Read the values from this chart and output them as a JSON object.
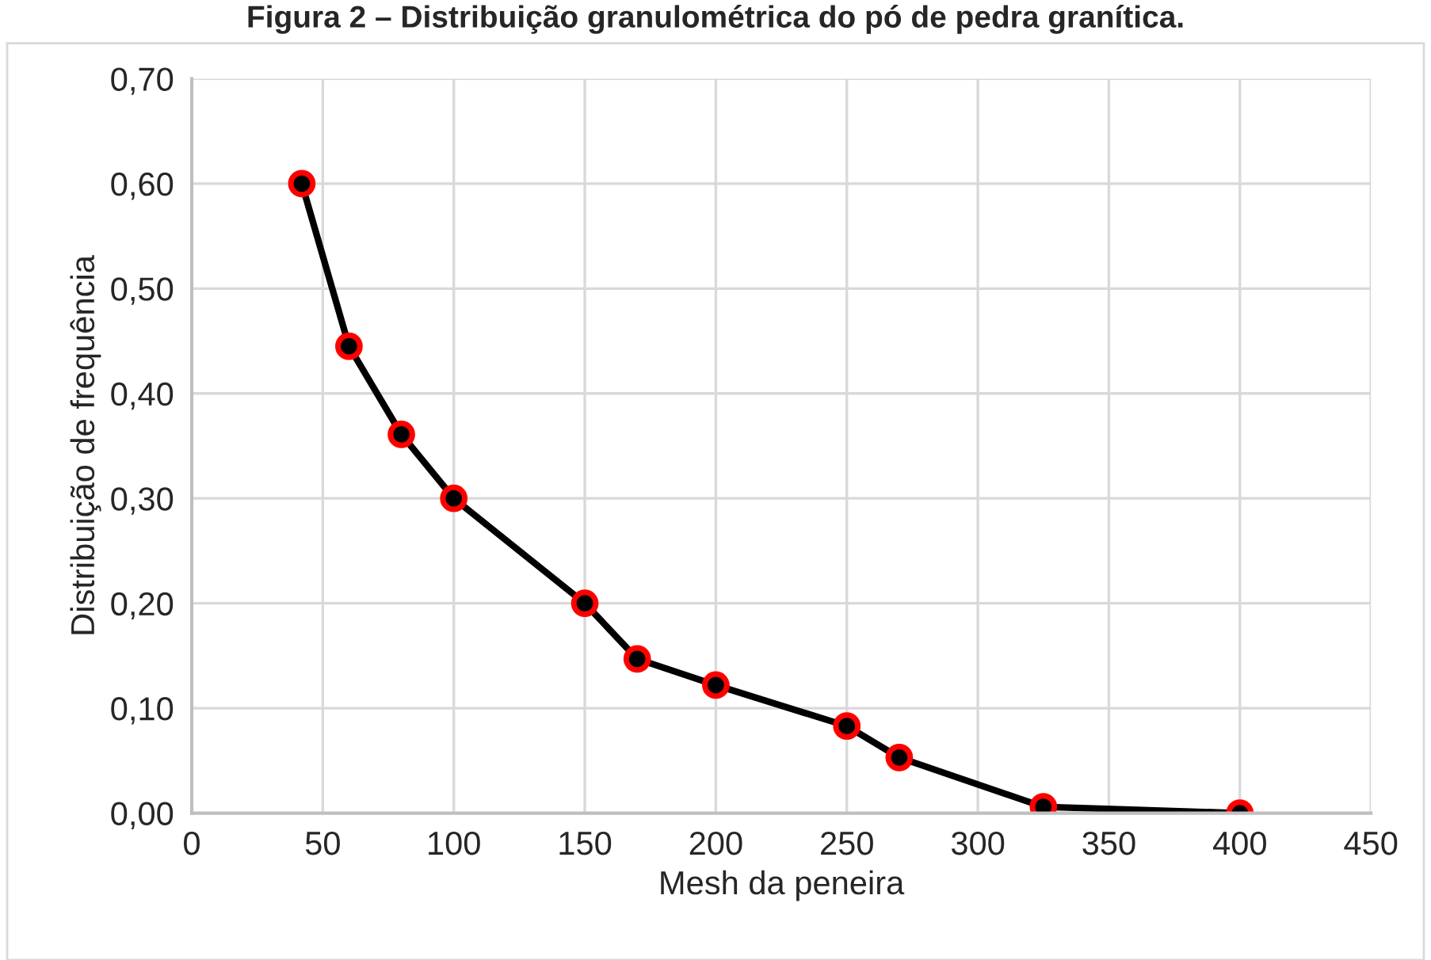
{
  "chart_data": {
    "type": "line",
    "title": "Figura 2 – Distribuição granulométrica do pó de pedra granítica.",
    "xlabel": "Mesh da peneira",
    "ylabel": "Distribuição de frequência",
    "x": [
      42,
      60,
      80,
      100,
      150,
      170,
      200,
      250,
      270,
      325,
      400
    ],
    "series": [
      {
        "color": "#000000",
        "values": [
          0.6,
          0.445,
          0.361,
          0.3,
          0.2,
          0.147,
          0.122,
          0.083,
          0.053,
          0.006,
          0.0
        ]
      }
    ],
    "xlim": [
      0,
      450
    ],
    "xticks": [
      0,
      50,
      100,
      150,
      200,
      250,
      300,
      350,
      400,
      450
    ],
    "ylim": [
      0,
      0.7
    ],
    "yticks": [
      {
        "value": 0,
        "label": "0,00"
      },
      {
        "value": 0.1,
        "label": "0,10"
      },
      {
        "value": 0.2,
        "label": "0,20"
      },
      {
        "value": 0.3,
        "label": "0,30"
      },
      {
        "value": 0.4,
        "label": "0,40"
      },
      {
        "value": 0.5,
        "label": "0,50"
      },
      {
        "value": 0.6,
        "label": "0,60"
      },
      {
        "value": 0.7,
        "label": "0,70"
      }
    ],
    "grid": true,
    "marker": "circle",
    "line_style": "solid",
    "legend": false
  }
}
